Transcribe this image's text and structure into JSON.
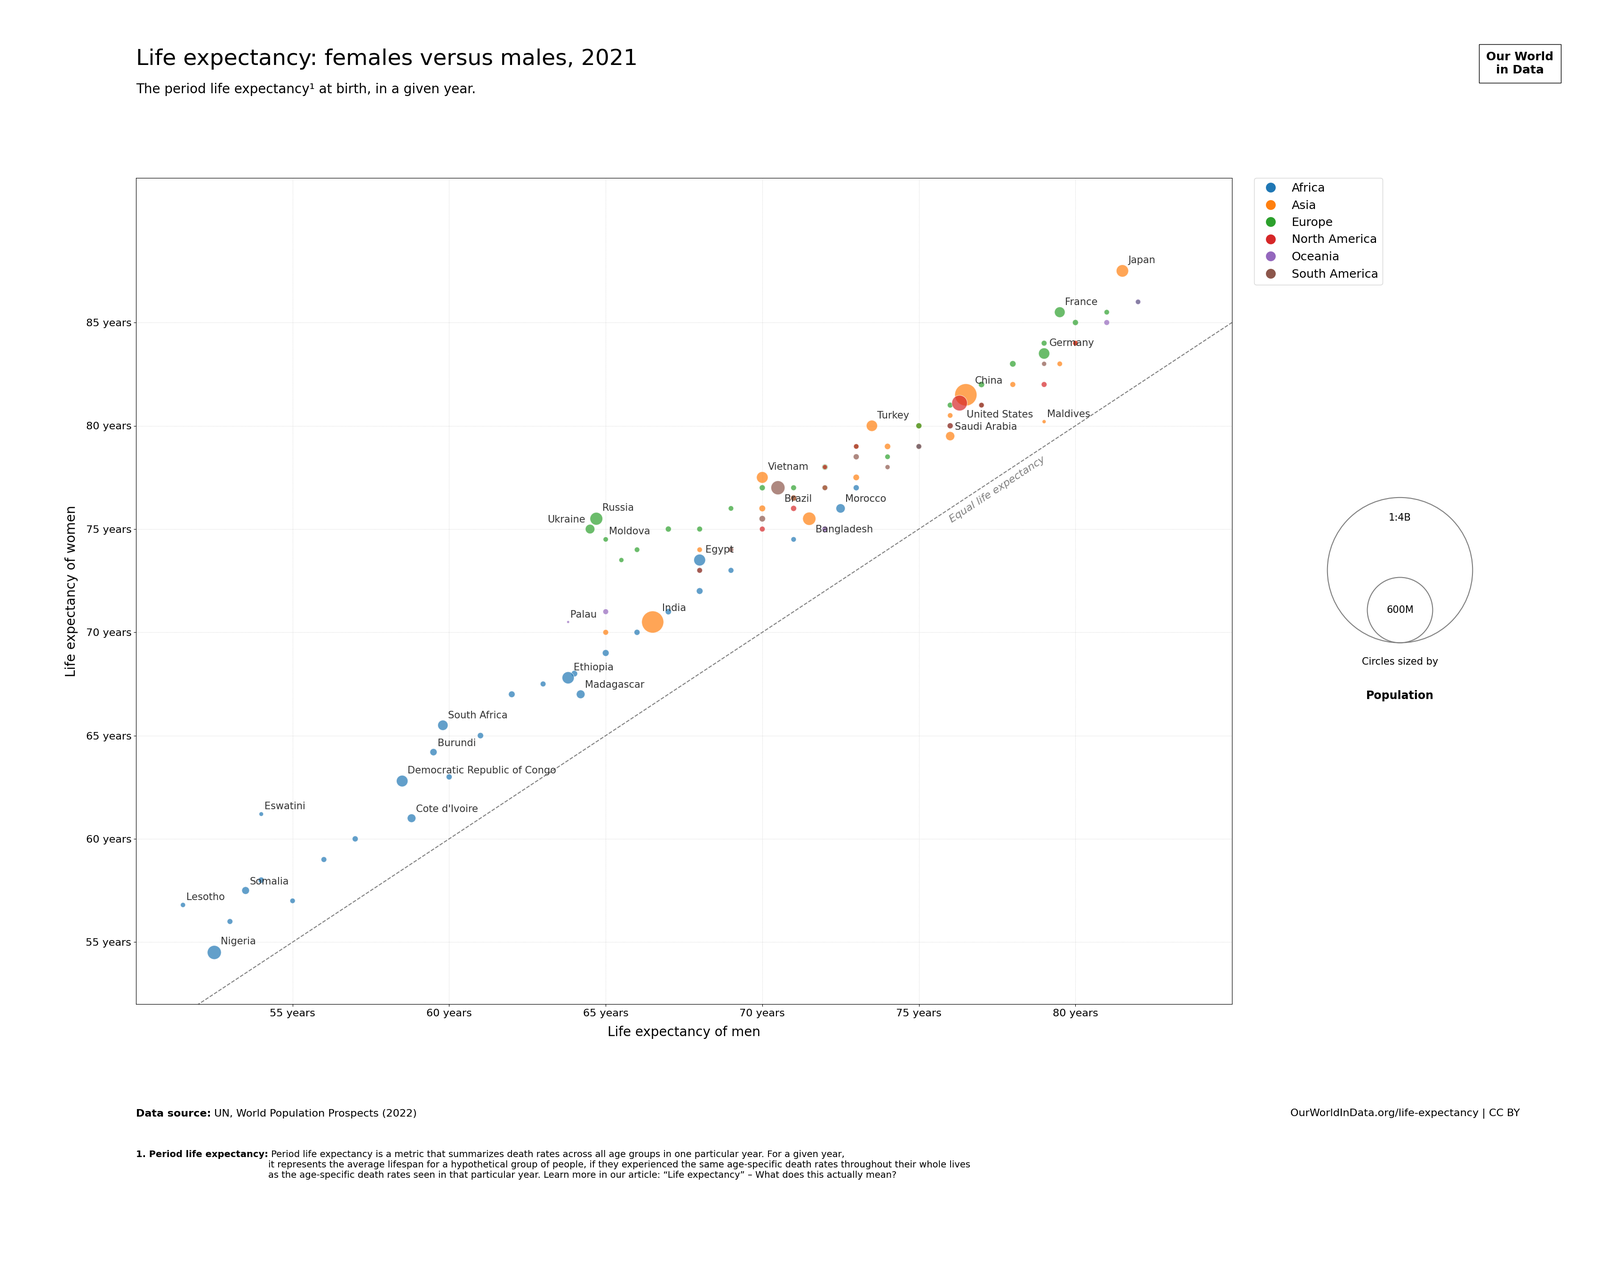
{
  "chart_data": {
    "type": "scatter",
    "title": "Life expectancy: females versus males, 2021",
    "subtitle": "The period life expectancy¹ at birth, in a given year.",
    "xlabel": "Life expectancy of men",
    "ylabel": "Life expectancy of women",
    "xlim": [
      50,
      85
    ],
    "ylim": [
      52,
      92
    ],
    "xticks": [
      {
        "value": 55,
        "label": "55 years"
      },
      {
        "value": 60,
        "label": "60 years"
      },
      {
        "value": 65,
        "label": "65 years"
      },
      {
        "value": 70,
        "label": "70 years"
      },
      {
        "value": 75,
        "label": "75 years"
      },
      {
        "value": 80,
        "label": "80 years"
      }
    ],
    "yticks": [
      {
        "value": 55,
        "label": "55 years"
      },
      {
        "value": 60,
        "label": "60 years"
      },
      {
        "value": 65,
        "label": "65 years"
      },
      {
        "value": 70,
        "label": "70 years"
      },
      {
        "value": 75,
        "label": "75 years"
      },
      {
        "value": 80,
        "label": "80 years"
      },
      {
        "value": 85,
        "label": "85 years"
      }
    ],
    "grid": true,
    "legend": "upper left",
    "reference_line": {
      "label": "Equal life expectancy"
    },
    "size_legend": {
      "labels": [
        "1:4B",
        "600M"
      ],
      "caption": "Circles sized by",
      "title": "Population"
    },
    "logo": [
      "Our World",
      "in Data"
    ],
    "source_bold": "Data source:",
    "source_rest": " UN, World Population Prospects (2022)",
    "url_text": "OurWorldInData.org/life-expectancy | CC BY",
    "footnote_bold": "1. Period life expectancy:",
    "footnote_rest": " Period life expectancy is a metric that summarizes death rates across all age groups in one particular year. For a given year,\nit represents the average lifespan for a hypothetical group of people, if they experienced the same age-specific death rates throughout their whole lives\nas the age-specific death rates seen in that particular year. Learn more in our article: “Life expectancy” – What does this actually mean?",
    "series": [
      {
        "name": "Africa",
        "x": [
          62,
          60,
          61,
          63,
          64,
          65,
          66,
          67,
          68,
          69,
          71,
          73,
          75,
          57,
          56,
          55,
          54,
          53,
          52.5,
          51.5,
          53.5,
          54.0,
          58.5,
          58.8,
          59.5,
          59.8,
          63.8,
          64.2,
          68.0,
          72.5
        ],
        "values": [
          67,
          63,
          65,
          67.5,
          68,
          69,
          70,
          71,
          72,
          73,
          74.5,
          77,
          79,
          60,
          59,
          57,
          58,
          56,
          54.5,
          56.8,
          57.5,
          61.2,
          62.8,
          61.0,
          64.2,
          65.5,
          67.8,
          67.0,
          73.5,
          76.0
        ],
        "sizes": [
          8000000,
          5000000,
          6000000,
          4000000,
          7000000,
          9000000,
          5000000,
          6000000,
          8000000,
          4000000,
          3000000,
          5000000,
          2000000,
          5000000,
          4000000,
          3000000,
          6000000,
          4000000,
          213400000,
          2200000,
          16400000,
          1170000,
          95900000,
          26900000,
          11900000,
          59300000,
          117900000,
          27700000,
          102300000,
          36900000
        ],
        "labels": [
          null,
          null,
          null,
          null,
          null,
          null,
          null,
          null,
          null,
          null,
          null,
          null,
          null,
          null,
          null,
          null,
          null,
          null,
          "Nigeria",
          "Lesotho",
          "Somalia",
          "Eswatini",
          "Democratic Republic of Congo",
          "Cote d'Ivoire",
          "Burundi",
          "South Africa",
          "Ethiopia",
          "Madagascar",
          "Egypt",
          "Morocco"
        ]
      },
      {
        "name": "Asia",
        "x": [
          75,
          76,
          77,
          72,
          74,
          68,
          70,
          71,
          73,
          78,
          79.5,
          80,
          65,
          66.5,
          71.5,
          70.0,
          76.5,
          73.5,
          76.0,
          79.0,
          81.5
        ],
        "values": [
          80,
          80.5,
          81,
          77,
          79,
          74,
          76,
          76.5,
          77.5,
          82,
          83,
          84,
          70,
          70.5,
          75.5,
          77.5,
          81.5,
          80.0,
          79.5,
          80.2,
          87.5
        ],
        "sizes": [
          5000000,
          3000000,
          4000000,
          2000000,
          6000000,
          3000000,
          8000000,
          5000000,
          7000000,
          4000000,
          3000000,
          5000000,
          4000000,
          1380000000,
          166300000,
          97300000,
          1411000000,
          84300000,
          34800000,
          540000,
          125700000
        ],
        "labels": [
          null,
          null,
          null,
          null,
          null,
          null,
          null,
          null,
          null,
          null,
          null,
          null,
          null,
          "India",
          "Bangladesh",
          "Vietnam",
          "China",
          "Turkey",
          "Saudi Arabia",
          "Maldives",
          "Japan"
        ]
      },
      {
        "name": "Europe",
        "x": [
          74,
          75,
          76,
          77,
          78,
          79,
          80,
          73,
          72,
          71,
          70,
          69,
          68,
          67,
          66,
          65.5,
          81,
          82,
          64.5,
          64.7,
          65.0,
          79.0,
          79.5
        ],
        "values": [
          78.5,
          80,
          81,
          82,
          83,
          84,
          85,
          79,
          78,
          77,
          77,
          76,
          75,
          75,
          74,
          73.5,
          85.5,
          86,
          75.0,
          75.5,
          74.5,
          83.5,
          85.5
        ],
        "sizes": [
          3000000,
          5000000,
          4000000,
          6000000,
          7000000,
          4000000,
          5000000,
          3000000,
          6000000,
          4000000,
          5000000,
          3000000,
          4000000,
          5000000,
          3000000,
          2000000,
          3000000,
          2000000,
          41800000,
          145100000,
          2600000,
          83200000,
          67400000
        ],
        "labels": [
          null,
          null,
          null,
          null,
          null,
          null,
          null,
          null,
          null,
          null,
          null,
          null,
          null,
          null,
          null,
          null,
          null,
          null,
          "Ukraine",
          "Russia",
          "Moldova",
          "Germany",
          "France"
        ]
      },
      {
        "name": "North America",
        "x": [
          77,
          73,
          72,
          71,
          70,
          68,
          76,
          79,
          80,
          76.3
        ],
        "values": [
          81,
          79,
          78,
          76,
          75,
          73,
          80,
          82,
          84,
          81.1
        ],
        "sizes": [
          4000000,
          3000000,
          2000000,
          5000000,
          4000000,
          3000000,
          5000000,
          4000000,
          3000000,
          332000000
        ],
        "labels": [
          null,
          null,
          null,
          null,
          null,
          null,
          null,
          null,
          null,
          "United States"
        ]
      },
      {
        "name": "Oceania",
        "x": [
          65,
          72,
          81,
          82,
          63.8
        ],
        "values": [
          71,
          75,
          85,
          86,
          70.5
        ],
        "sizes": [
          4000000,
          5000000,
          4000000,
          3000000,
          18000
        ],
        "labels": [
          null,
          null,
          null,
          null,
          "Palau"
        ]
      },
      {
        "name": "South America",
        "x": [
          74,
          73,
          72,
          71,
          70,
          69,
          68,
          76,
          75,
          77,
          79,
          70.5
        ],
        "values": [
          78,
          78.5,
          77,
          76.5,
          75.5,
          74,
          73,
          80,
          79,
          81,
          83,
          77.0
        ],
        "sizes": [
          2000000,
          5000000,
          4000000,
          6000000,
          7000000,
          3000000,
          4000000,
          5000000,
          4000000,
          3000000,
          2000000,
          213000000
        ],
        "labels": [
          null,
          null,
          null,
          null,
          null,
          null,
          null,
          null,
          null,
          null,
          null,
          "Brazil"
        ]
      }
    ]
  }
}
